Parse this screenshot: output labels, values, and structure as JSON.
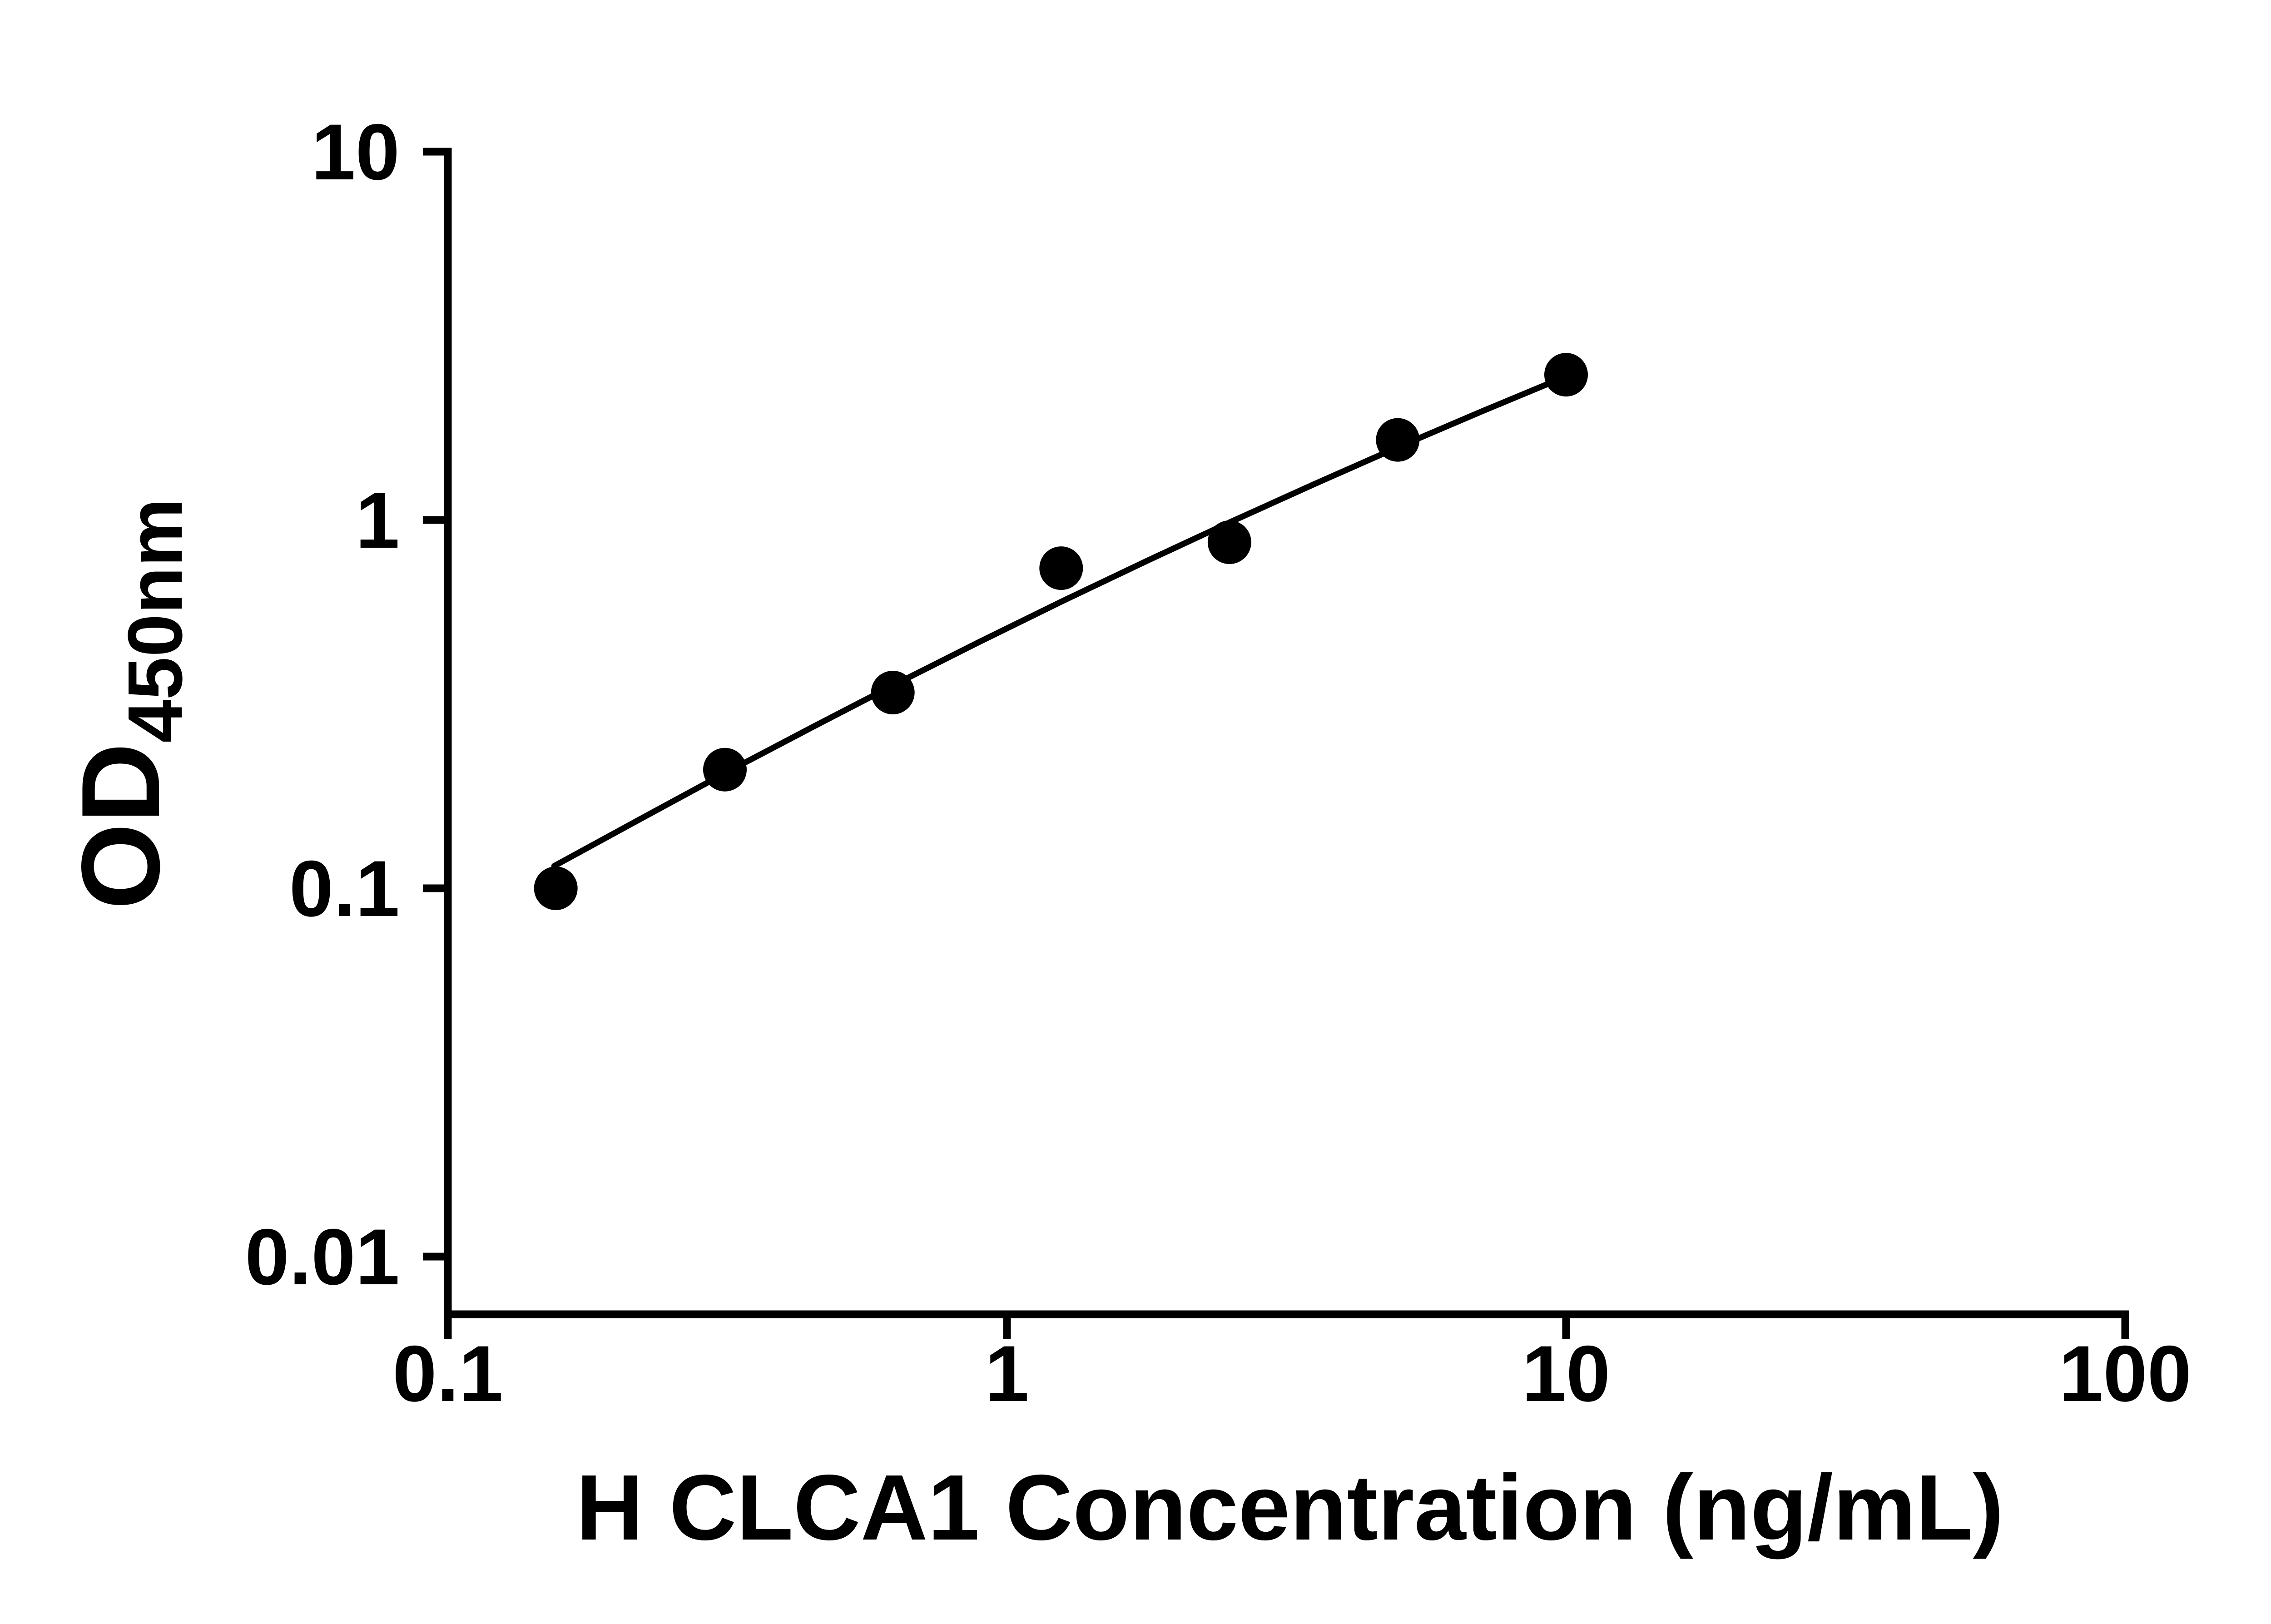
{
  "figure": {
    "background_color": "#ffffff",
    "foreground_color": "#000000"
  },
  "chart_data": {
    "type": "scatter",
    "xlabel": "H CLCA1 Concentration (ng/mL)",
    "ylabel_main": "OD",
    "ylabel_sub": "450nm",
    "x_scale": "log10",
    "y_scale": "log10",
    "xlim": [
      0.1,
      100
    ],
    "ylim": [
      0.01,
      10
    ],
    "grid": false,
    "legend": "none",
    "x_ticks": [
      {
        "value": 0.1,
        "label": "0.1"
      },
      {
        "value": 1,
        "label": "1"
      },
      {
        "value": 10,
        "label": "10"
      },
      {
        "value": 100,
        "label": "100"
      }
    ],
    "y_ticks": [
      {
        "value": 0.01,
        "label": "0.01"
      },
      {
        "value": 0.1,
        "label": "0.1"
      },
      {
        "value": 1,
        "label": "1"
      },
      {
        "value": 10,
        "label": "10"
      }
    ],
    "series": [
      {
        "name": "standard-points",
        "type": "scatter",
        "marker": "filled-circle",
        "color": "#000000",
        "marker_size_px": 96,
        "points": [
          {
            "x": 0.156,
            "y": 0.1
          },
          {
            "x": 0.313,
            "y": 0.21
          },
          {
            "x": 0.625,
            "y": 0.34
          },
          {
            "x": 1.25,
            "y": 0.74
          },
          {
            "x": 2.5,
            "y": 0.87
          },
          {
            "x": 5,
            "y": 1.65
          },
          {
            "x": 10,
            "y": 2.48
          }
        ]
      },
      {
        "name": "fit-curve",
        "type": "line",
        "color": "#000000",
        "points": [
          {
            "x": 0.155,
            "y": 0.115
          },
          {
            "x": 0.224,
            "y": 0.156
          },
          {
            "x": 0.316,
            "y": 0.207
          },
          {
            "x": 0.447,
            "y": 0.273
          },
          {
            "x": 0.631,
            "y": 0.358
          },
          {
            "x": 0.891,
            "y": 0.466
          },
          {
            "x": 1.259,
            "y": 0.603
          },
          {
            "x": 1.778,
            "y": 0.774
          },
          {
            "x": 2.512,
            "y": 0.988
          },
          {
            "x": 3.548,
            "y": 1.252
          },
          {
            "x": 5.012,
            "y": 1.578
          },
          {
            "x": 7.079,
            "y": 1.974
          },
          {
            "x": 10.0,
            "y": 2.455
          }
        ]
      }
    ]
  }
}
